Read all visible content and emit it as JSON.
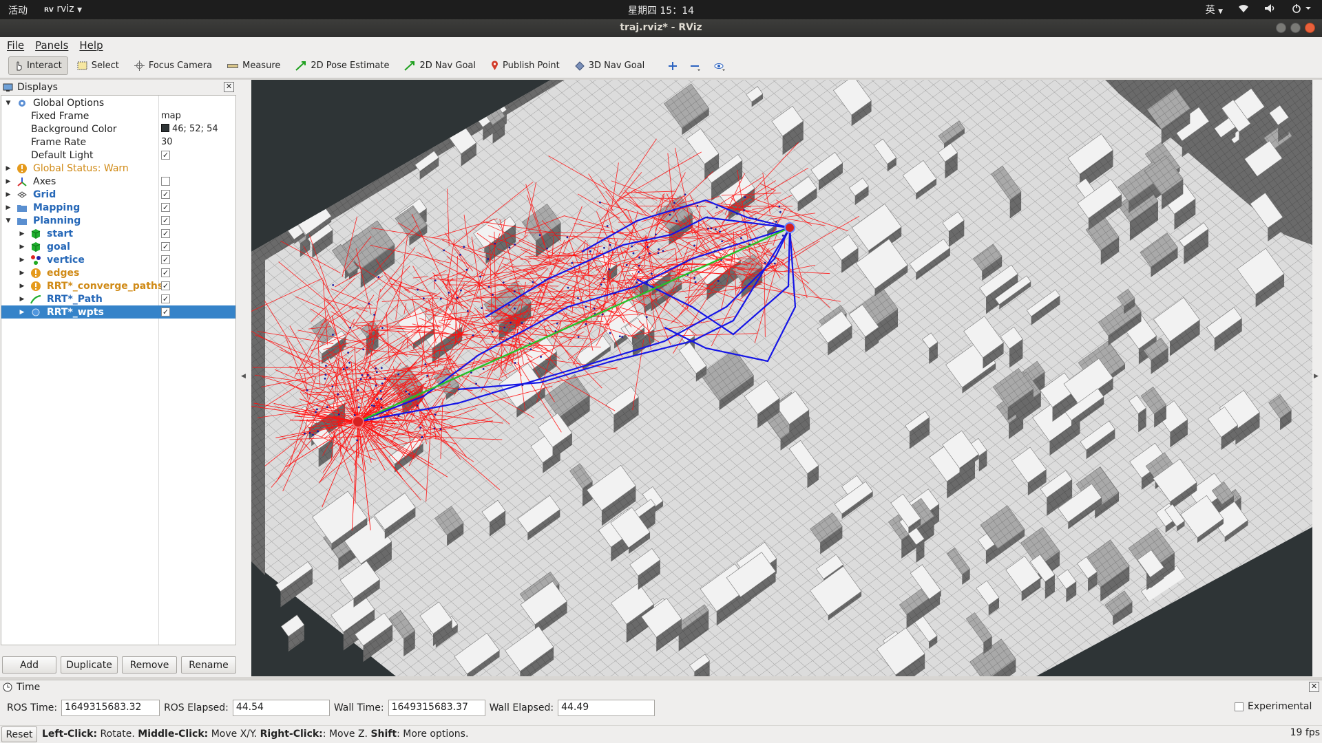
{
  "system": {
    "activities": "活动",
    "app_menu": "rviz",
    "clock": "星期四 15：14",
    "input_method": "英"
  },
  "window": {
    "title": "traj.rviz* - RViz"
  },
  "menu": {
    "file": "File",
    "panels": "Panels",
    "help": "Help"
  },
  "toolbar": {
    "interact": "Interact",
    "select": "Select",
    "focus_camera": "Focus Camera",
    "measure": "Measure",
    "pose_estimate": "2D Pose Estimate",
    "nav_goal_2d": "2D Nav Goal",
    "publish_point": "Publish Point",
    "nav_goal_3d": "3D Nav Goal"
  },
  "displays": {
    "title": "Displays",
    "global_options": "Global Options",
    "fixed_frame_label": "Fixed Frame",
    "fixed_frame_value": "map",
    "bg_color_label": "Background Color",
    "bg_color_value": "46; 52; 54",
    "frame_rate_label": "Frame Rate",
    "frame_rate_value": "30",
    "default_light_label": "Default Light",
    "global_status": "Global Status: Warn",
    "items": {
      "axes": "Axes",
      "grid": "Grid",
      "mapping": "Mapping",
      "planning": "Planning",
      "start": "start",
      "goal": "goal",
      "vertice": "vertice",
      "edges": "edges",
      "converge_paths": "RRT*_converge_paths",
      "path": "RRT*_Path",
      "wpts": "RRT*_wpts"
    },
    "buttons": {
      "add": "Add",
      "duplicate": "Duplicate",
      "remove": "Remove",
      "rename": "Rename"
    }
  },
  "time": {
    "title": "Time",
    "ros_time_label": "ROS Time:",
    "ros_time": "1649315683.32",
    "ros_elapsed_label": "ROS Elapsed:",
    "ros_elapsed": "44.54",
    "wall_time_label": "Wall Time:",
    "wall_time": "1649315683.37",
    "wall_elapsed_label": "Wall Elapsed:",
    "wall_elapsed": "44.49",
    "experimental": "Experimental"
  },
  "status": {
    "reset": "Reset",
    "left_click_key": "Left-Click:",
    "left_click_val": " Rotate. ",
    "middle_click_key": "Middle-Click:",
    "middle_click_val": " Move X/Y. ",
    "right_click_key": "Right-Click:",
    "right_click_val": ": Move Z. ",
    "shift_key": "Shift",
    "shift_val": ": More options.",
    "fps": "19 fps"
  },
  "colors": {
    "viewport_bg": "#2e3436",
    "edge_color": "#ff1010",
    "path_color": "#1515e6",
    "selection": "#3583c9",
    "warn": "#d08a16"
  }
}
